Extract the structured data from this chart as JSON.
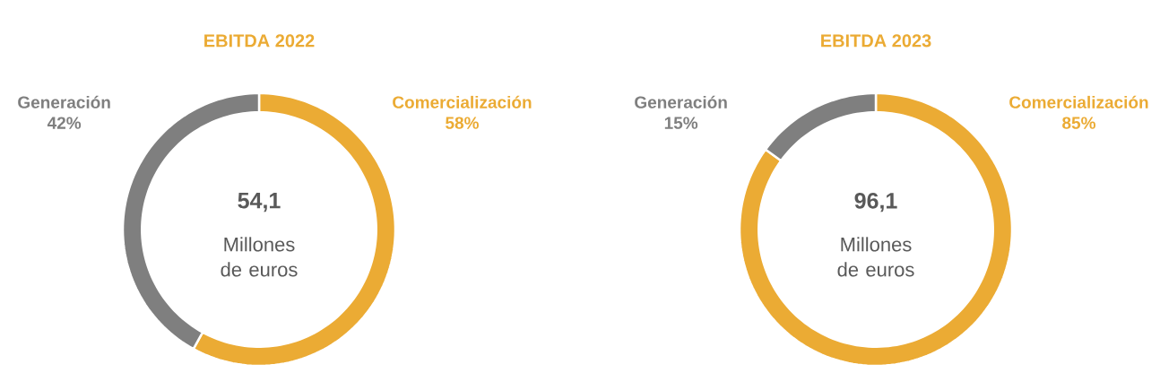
{
  "chart_data": [
    {
      "type": "donut",
      "title": "EBITDA 2022",
      "categories": [
        "Comercialización",
        "Generación"
      ],
      "values": [
        58,
        42
      ],
      "colors": [
        "#ebab34",
        "#7f7f7f"
      ],
      "value_labels": [
        "58%",
        "42%"
      ],
      "annotations": [
        "54,1",
        "Millones de euros"
      ]
    },
    {
      "type": "donut",
      "title": "EBITDA 2023",
      "categories": [
        "Comercialización",
        "Generación"
      ],
      "values": [
        85,
        15
      ],
      "colors": [
        "#ebab34",
        "#7f7f7f"
      ],
      "value_labels": [
        "85%",
        "15%"
      ],
      "annotations": [
        "96,1",
        "Millones de euros"
      ]
    }
  ]
}
